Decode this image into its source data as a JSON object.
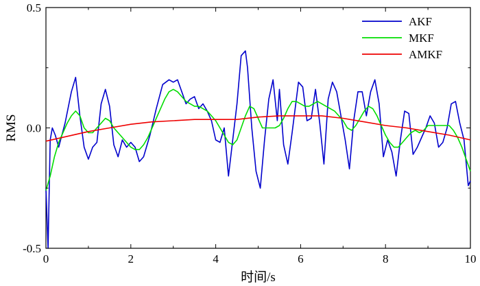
{
  "chart_data": {
    "type": "line",
    "xlabel": "时间/s",
    "ylabel": "RMS",
    "xlim": [
      0,
      10
    ],
    "ylim": [
      -0.5,
      0.5
    ],
    "x_ticks": [
      0,
      2,
      4,
      6,
      8,
      10
    ],
    "y_ticks": [
      -0.5,
      0.0,
      0.5
    ],
    "x_tick_labels": [
      "0",
      "2",
      "4",
      "6",
      "8",
      "10"
    ],
    "y_tick_labels": [
      "-0.5",
      "0.0",
      "0.5"
    ],
    "grid": false,
    "legend": "top-right",
    "series": [
      {
        "name": "AKF",
        "color": "#0000cc",
        "x": [
          0.0,
          0.05,
          0.1,
          0.15,
          0.22,
          0.3,
          0.45,
          0.6,
          0.7,
          0.8,
          0.9,
          1.0,
          1.1,
          1.2,
          1.3,
          1.4,
          1.5,
          1.6,
          1.7,
          1.8,
          1.9,
          2.0,
          2.1,
          2.2,
          2.3,
          2.45,
          2.6,
          2.75,
          2.9,
          3.0,
          3.1,
          3.2,
          3.3,
          3.4,
          3.5,
          3.6,
          3.7,
          3.8,
          3.9,
          4.0,
          4.1,
          4.2,
          4.3,
          4.4,
          4.5,
          4.6,
          4.7,
          4.75,
          4.85,
          4.95,
          5.05,
          5.15,
          5.25,
          5.35,
          5.45,
          5.5,
          5.6,
          5.7,
          5.8,
          5.95,
          6.05,
          6.15,
          6.25,
          6.35,
          6.45,
          6.55,
          6.65,
          6.75,
          6.85,
          6.95,
          7.05,
          7.15,
          7.25,
          7.35,
          7.45,
          7.55,
          7.65,
          7.75,
          7.85,
          7.95,
          8.05,
          8.15,
          8.25,
          8.35,
          8.45,
          8.55,
          8.65,
          8.75,
          8.85,
          8.95,
          9.05,
          9.15,
          9.25,
          9.35,
          9.45,
          9.55,
          9.65,
          9.75,
          9.85,
          9.95,
          10.0
        ],
        "y": [
          -0.25,
          -0.5,
          -0.05,
          0.0,
          -0.03,
          -0.08,
          0.02,
          0.15,
          0.21,
          0.05,
          -0.08,
          -0.13,
          -0.08,
          -0.06,
          0.1,
          0.16,
          0.09,
          -0.07,
          -0.12,
          -0.05,
          -0.08,
          -0.06,
          -0.08,
          -0.14,
          -0.12,
          -0.03,
          0.08,
          0.18,
          0.2,
          0.19,
          0.2,
          0.15,
          0.1,
          0.12,
          0.13,
          0.08,
          0.1,
          0.07,
          0.03,
          -0.05,
          -0.06,
          0.0,
          -0.2,
          -0.05,
          0.1,
          0.3,
          0.32,
          0.25,
          0.0,
          -0.18,
          -0.25,
          -0.05,
          0.12,
          0.2,
          0.03,
          0.16,
          -0.07,
          -0.15,
          -0.02,
          0.19,
          0.17,
          0.03,
          0.04,
          0.16,
          0.02,
          -0.15,
          0.12,
          0.19,
          0.15,
          0.05,
          -0.05,
          -0.17,
          0.03,
          0.15,
          0.15,
          0.05,
          0.15,
          0.2,
          0.1,
          -0.12,
          -0.05,
          -0.1,
          -0.2,
          -0.05,
          0.07,
          0.06,
          -0.11,
          -0.08,
          -0.04,
          0.0,
          0.05,
          0.02,
          -0.08,
          -0.06,
          0.0,
          0.1,
          0.11,
          0.02,
          -0.05,
          -0.24,
          -0.22
        ]
      },
      {
        "name": "MKF",
        "color": "#00dd00",
        "x": [
          0.0,
          0.1,
          0.2,
          0.3,
          0.4,
          0.5,
          0.6,
          0.7,
          0.8,
          0.9,
          1.0,
          1.1,
          1.2,
          1.3,
          1.4,
          1.5,
          1.6,
          1.7,
          1.8,
          1.9,
          2.0,
          2.1,
          2.2,
          2.3,
          2.4,
          2.5,
          2.6,
          2.7,
          2.8,
          2.9,
          3.0,
          3.1,
          3.2,
          3.3,
          3.4,
          3.5,
          3.6,
          3.7,
          3.8,
          3.9,
          4.0,
          4.1,
          4.2,
          4.3,
          4.4,
          4.5,
          4.6,
          4.7,
          4.8,
          4.9,
          5.0,
          5.1,
          5.2,
          5.3,
          5.4,
          5.5,
          5.6,
          5.7,
          5.8,
          5.9,
          6.0,
          6.1,
          6.2,
          6.3,
          6.4,
          6.5,
          6.6,
          6.7,
          6.8,
          6.9,
          7.0,
          7.1,
          7.2,
          7.3,
          7.4,
          7.5,
          7.6,
          7.7,
          7.8,
          7.9,
          8.0,
          8.1,
          8.2,
          8.3,
          8.4,
          8.5,
          8.6,
          8.7,
          8.8,
          8.9,
          9.0,
          9.1,
          9.2,
          9.3,
          9.4,
          9.5,
          9.6,
          9.7,
          9.8,
          9.9,
          10.0
        ],
        "y": [
          -0.26,
          -0.2,
          -0.12,
          -0.06,
          -0.02,
          0.02,
          0.05,
          0.07,
          0.05,
          0.0,
          -0.02,
          -0.02,
          0.0,
          0.02,
          0.04,
          0.03,
          0.0,
          -0.02,
          -0.04,
          -0.06,
          -0.08,
          -0.09,
          -0.09,
          -0.07,
          -0.04,
          0.0,
          0.04,
          0.08,
          0.12,
          0.15,
          0.16,
          0.15,
          0.13,
          0.11,
          0.1,
          0.09,
          0.09,
          0.08,
          0.07,
          0.05,
          0.03,
          0.0,
          -0.03,
          -0.06,
          -0.07,
          -0.05,
          0.0,
          0.05,
          0.09,
          0.08,
          0.04,
          0.0,
          0.0,
          0.0,
          0.0,
          0.01,
          0.04,
          0.08,
          0.11,
          0.11,
          0.1,
          0.09,
          0.09,
          0.1,
          0.11,
          0.1,
          0.09,
          0.08,
          0.07,
          0.05,
          0.03,
          0.0,
          -0.01,
          0.01,
          0.04,
          0.07,
          0.09,
          0.08,
          0.05,
          0.01,
          -0.03,
          -0.06,
          -0.08,
          -0.08,
          -0.06,
          -0.04,
          -0.02,
          -0.01,
          -0.02,
          -0.01,
          0.01,
          0.01,
          0.01,
          0.01,
          0.01,
          0.01,
          -0.01,
          -0.04,
          -0.08,
          -0.13,
          -0.18
        ]
      },
      {
        "name": "AMKF",
        "color": "#ee0000",
        "x": [
          0.0,
          0.5,
          1.0,
          1.5,
          2.0,
          2.5,
          3.0,
          3.5,
          4.0,
          4.5,
          5.0,
          5.5,
          6.0,
          6.5,
          7.0,
          7.5,
          8.0,
          8.5,
          9.0,
          9.5,
          10.0
        ],
        "y": [
          -0.055,
          -0.035,
          -0.015,
          0.0,
          0.015,
          0.025,
          0.03,
          0.035,
          0.035,
          0.035,
          0.045,
          0.05,
          0.05,
          0.05,
          0.04,
          0.025,
          0.01,
          0.0,
          -0.015,
          -0.03,
          -0.05
        ]
      }
    ]
  }
}
